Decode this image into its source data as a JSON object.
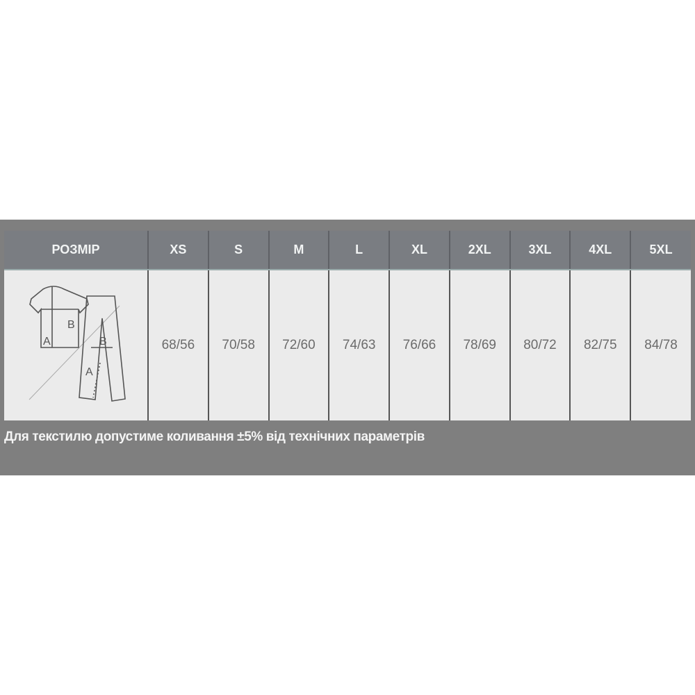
{
  "table": {
    "header_label": "РОЗМІР",
    "sizes": [
      "XS",
      "S",
      "M",
      "L",
      "XL",
      "2XL",
      "3XL",
      "4XL",
      "5XL"
    ],
    "values": [
      "68/56",
      "70/58",
      "72/60",
      "74/63",
      "76/66",
      "78/69",
      "80/72",
      "82/75",
      "84/78"
    ],
    "diagram": {
      "shirt_label_a": "A",
      "shirt_label_b": "B",
      "pants_label_a": "A",
      "pants_label_b": "B"
    }
  },
  "note": "Для текстилю допустиме коливання ±5% від технічних параметрів"
}
